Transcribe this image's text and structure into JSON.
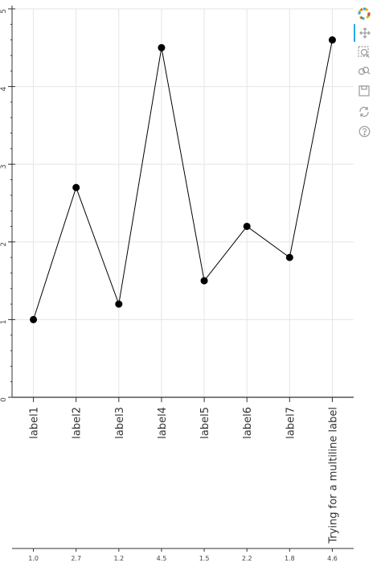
{
  "chart_data": {
    "type": "line",
    "categories": [
      "label1",
      "label2",
      "label3",
      "label4",
      "label5",
      "label6",
      "label7",
      "Trying for a multiline label"
    ],
    "values": [
      1.0,
      2.7,
      1.2,
      4.5,
      1.5,
      2.2,
      1.8,
      4.6
    ],
    "secondary_axis_labels": [
      "1.0",
      "2.7",
      "1.2",
      "4.5",
      "1.5",
      "2.2",
      "1.8",
      "4.6"
    ],
    "title": "",
    "xlabel": "",
    "ylabel": "",
    "ylim": [
      0,
      5
    ],
    "yticks": [
      0,
      1,
      2,
      3,
      4,
      5
    ],
    "grid": true,
    "line_color": "#000000",
    "marker_color": "#000000",
    "grid_color": "#e5e5e5"
  },
  "toolbar": {
    "tools": [
      {
        "name": "bokeh-logo-icon",
        "interactable": false
      },
      {
        "name": "pan-icon",
        "interactable": true,
        "active": true
      },
      {
        "name": "box-zoom-icon",
        "interactable": true
      },
      {
        "name": "wheel-zoom-icon",
        "interactable": true
      },
      {
        "name": "save-icon",
        "interactable": true
      },
      {
        "name": "reset-icon",
        "interactable": true
      },
      {
        "name": "help-icon",
        "interactable": true
      }
    ],
    "accent_color": "#26aae1"
  }
}
